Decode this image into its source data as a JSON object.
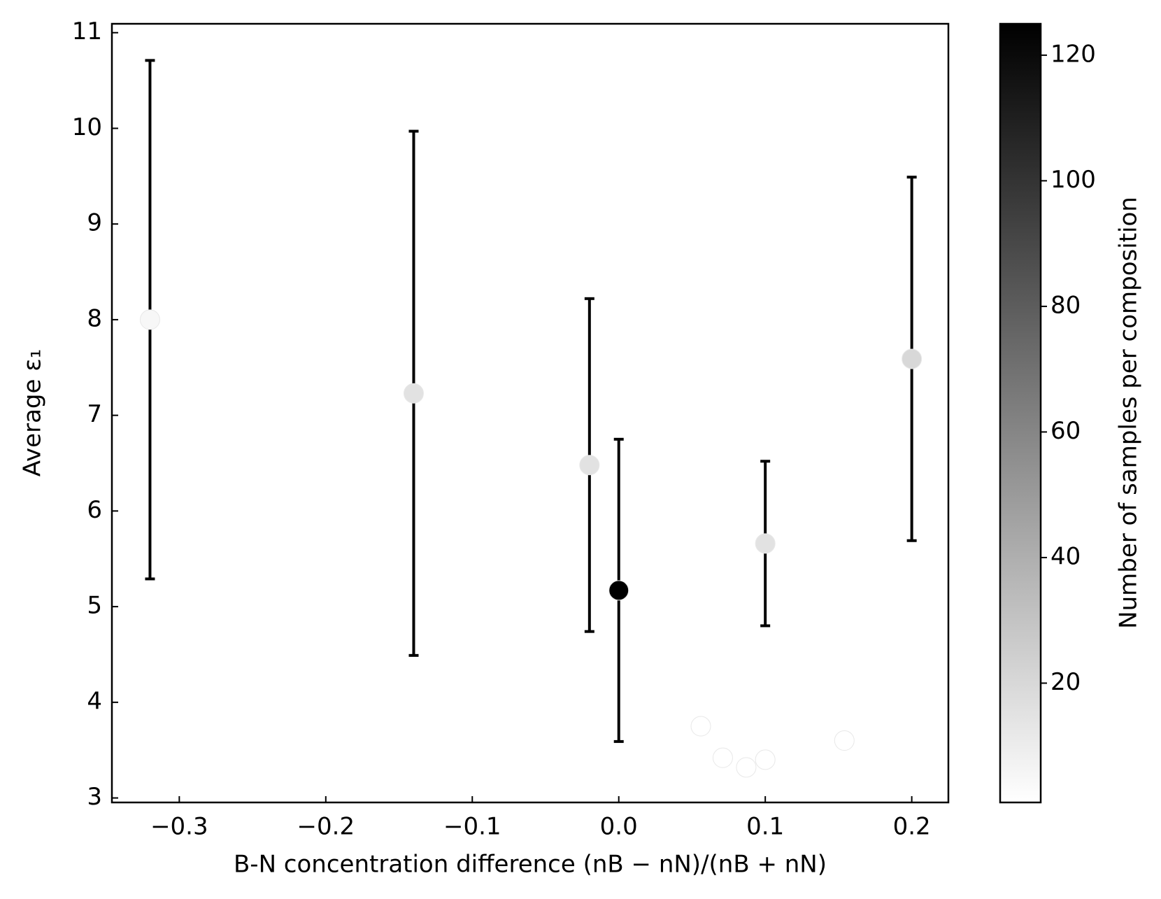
{
  "chart_data": {
    "type": "scatter",
    "x_label": "B-N concentration difference (nB − nN)/(nB + nN)",
    "y_label": "Average ε₁",
    "colorbar_label": "Number of samples per composition",
    "colormap": "Greys",
    "x": [
      -0.32,
      -0.14,
      -0.02,
      0.0,
      0.1,
      0.2,
      0.056,
      0.071,
      0.087,
      0.1,
      0.154
    ],
    "values": [
      8.0,
      7.23,
      6.48,
      5.17,
      5.66,
      7.59,
      3.75,
      3.42,
      3.32,
      3.4,
      3.6
    ],
    "errors": [
      2.71,
      2.74,
      1.74,
      1.58,
      0.86,
      1.9,
      null,
      null,
      null,
      null,
      null
    ],
    "counts": [
      5,
      15,
      15,
      125,
      15,
      20,
      1,
      1,
      1,
      1,
      1
    ],
    "xlim": [
      -0.346,
      0.225
    ],
    "ylim": [
      2.953,
      11.093
    ],
    "clim": [
      1,
      125
    ],
    "xticks": [
      {
        "value": -0.3,
        "label": "−0.3"
      },
      {
        "value": -0.2,
        "label": "−0.2"
      },
      {
        "value": -0.1,
        "label": "−0.1"
      },
      {
        "value": 0.0,
        "label": "0.0"
      },
      {
        "value": 0.1,
        "label": "0.1"
      },
      {
        "value": 0.2,
        "label": "0.2"
      }
    ],
    "yticks": [
      3,
      4,
      5,
      6,
      7,
      8,
      9,
      10,
      11
    ],
    "cticks": [
      20,
      40,
      60,
      80,
      100,
      120
    ]
  }
}
